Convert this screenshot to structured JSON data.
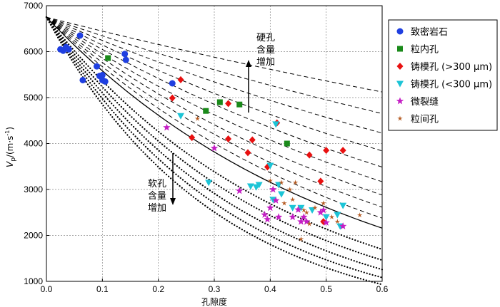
{
  "chart_data": {
    "type": "scatter",
    "xlabel": "孔隙度",
    "ylabel_main": "V",
    "ylabel_sub": "p",
    "ylabel_unit": "/(m·s",
    "ylabel_exp": "-1",
    "ylabel_close": ")",
    "xlim": [
      0.0,
      0.6
    ],
    "ylim": [
      1000,
      7000
    ],
    "xticks": [
      "0.0",
      "0.1",
      "0.2",
      "0.3",
      "0.4",
      "0.5",
      "0.6"
    ],
    "yticks": [
      "1000",
      "2000",
      "3000",
      "4000",
      "5000",
      "6000",
      "7000"
    ],
    "grid": true,
    "legend_position": "top-right",
    "annotations": {
      "stiff": [
        "硬孔",
        "含量",
        "增加"
      ],
      "soft": [
        "软孔",
        "含量",
        "增加"
      ]
    },
    "curves": {
      "start": 6750,
      "solid_b": 1.9,
      "stiff_b": [
        0.46,
        0.62,
        0.78,
        0.94,
        1.1,
        1.26,
        1.42,
        1.58,
        1.74
      ],
      "soft_b": [
        2.3,
        2.55,
        2.8,
        3.05,
        3.3
      ]
    },
    "series": [
      {
        "name": "致密岩石",
        "marker": "circle",
        "color": "#1f3fe0",
        "x": [
          0.025,
          0.03,
          0.035,
          0.04,
          0.06,
          0.065,
          0.09,
          0.095,
          0.1,
          0.1,
          0.105,
          0.14,
          0.142,
          0.225
        ],
        "y": [
          6050,
          6020,
          6100,
          6050,
          6350,
          5380,
          5680,
          5470,
          5490,
          5380,
          5350,
          5950,
          5820,
          5310
        ]
      },
      {
        "name": "粒内孔",
        "marker": "square",
        "color": "#1a8a1a",
        "x": [
          0.11,
          0.285,
          0.31,
          0.345,
          0.43
        ],
        "y": [
          5860,
          4710,
          4900,
          4850,
          4000
        ]
      },
      {
        "name": "铸模孔 (>300 μm)",
        "marker": "diamond",
        "color": "#e81010",
        "x": [
          0.24,
          0.225,
          0.26,
          0.325,
          0.325,
          0.36,
          0.368,
          0.395,
          0.412,
          0.47,
          0.49,
          0.5,
          0.53,
          0.495
        ],
        "y": [
          5390,
          4990,
          4130,
          4870,
          4100,
          3800,
          4080,
          3490,
          4450,
          3750,
          3180,
          3850,
          3850,
          2300
        ]
      },
      {
        "name": "铸模孔 (<300 μm)",
        "marker": "triangle-down",
        "color": "#1cc4d6",
        "x": [
          0.24,
          0.29,
          0.365,
          0.375,
          0.38,
          0.4,
          0.405,
          0.41,
          0.415,
          0.42,
          0.44,
          0.455,
          0.475,
          0.5,
          0.52,
          0.525,
          0.53
        ],
        "y": [
          4600,
          3150,
          3070,
          3050,
          3100,
          3520,
          2780,
          4420,
          3100,
          2900,
          2600,
          2600,
          2550,
          2400,
          2450,
          2200,
          2650
        ]
      },
      {
        "name": "微裂缝",
        "marker": "star",
        "color": "#c41ec4",
        "x": [
          0.215,
          0.3,
          0.345,
          0.39,
          0.395,
          0.4,
          0.405,
          0.41,
          0.415,
          0.44,
          0.45,
          0.455,
          0.46,
          0.465,
          0.49,
          0.495,
          0.5,
          0.53
        ],
        "y": [
          4350,
          3900,
          2970,
          2450,
          2350,
          2600,
          3000,
          2760,
          2400,
          2400,
          2560,
          2300,
          2400,
          2300,
          2500,
          2550,
          2280,
          2200
        ]
      },
      {
        "name": "粒间孔",
        "marker": "plus",
        "color": "#b4581e",
        "x": [
          0.27,
          0.4,
          0.42,
          0.425,
          0.435,
          0.44,
          0.445,
          0.455,
          0.46,
          0.465,
          0.47,
          0.48,
          0.495,
          0.51,
          0.52,
          0.56
        ],
        "y": [
          4540,
          3190,
          3150,
          2700,
          3000,
          2780,
          3150,
          1920,
          2550,
          2500,
          2250,
          2600,
          2700,
          2400,
          2300,
          2440
        ]
      }
    ]
  }
}
